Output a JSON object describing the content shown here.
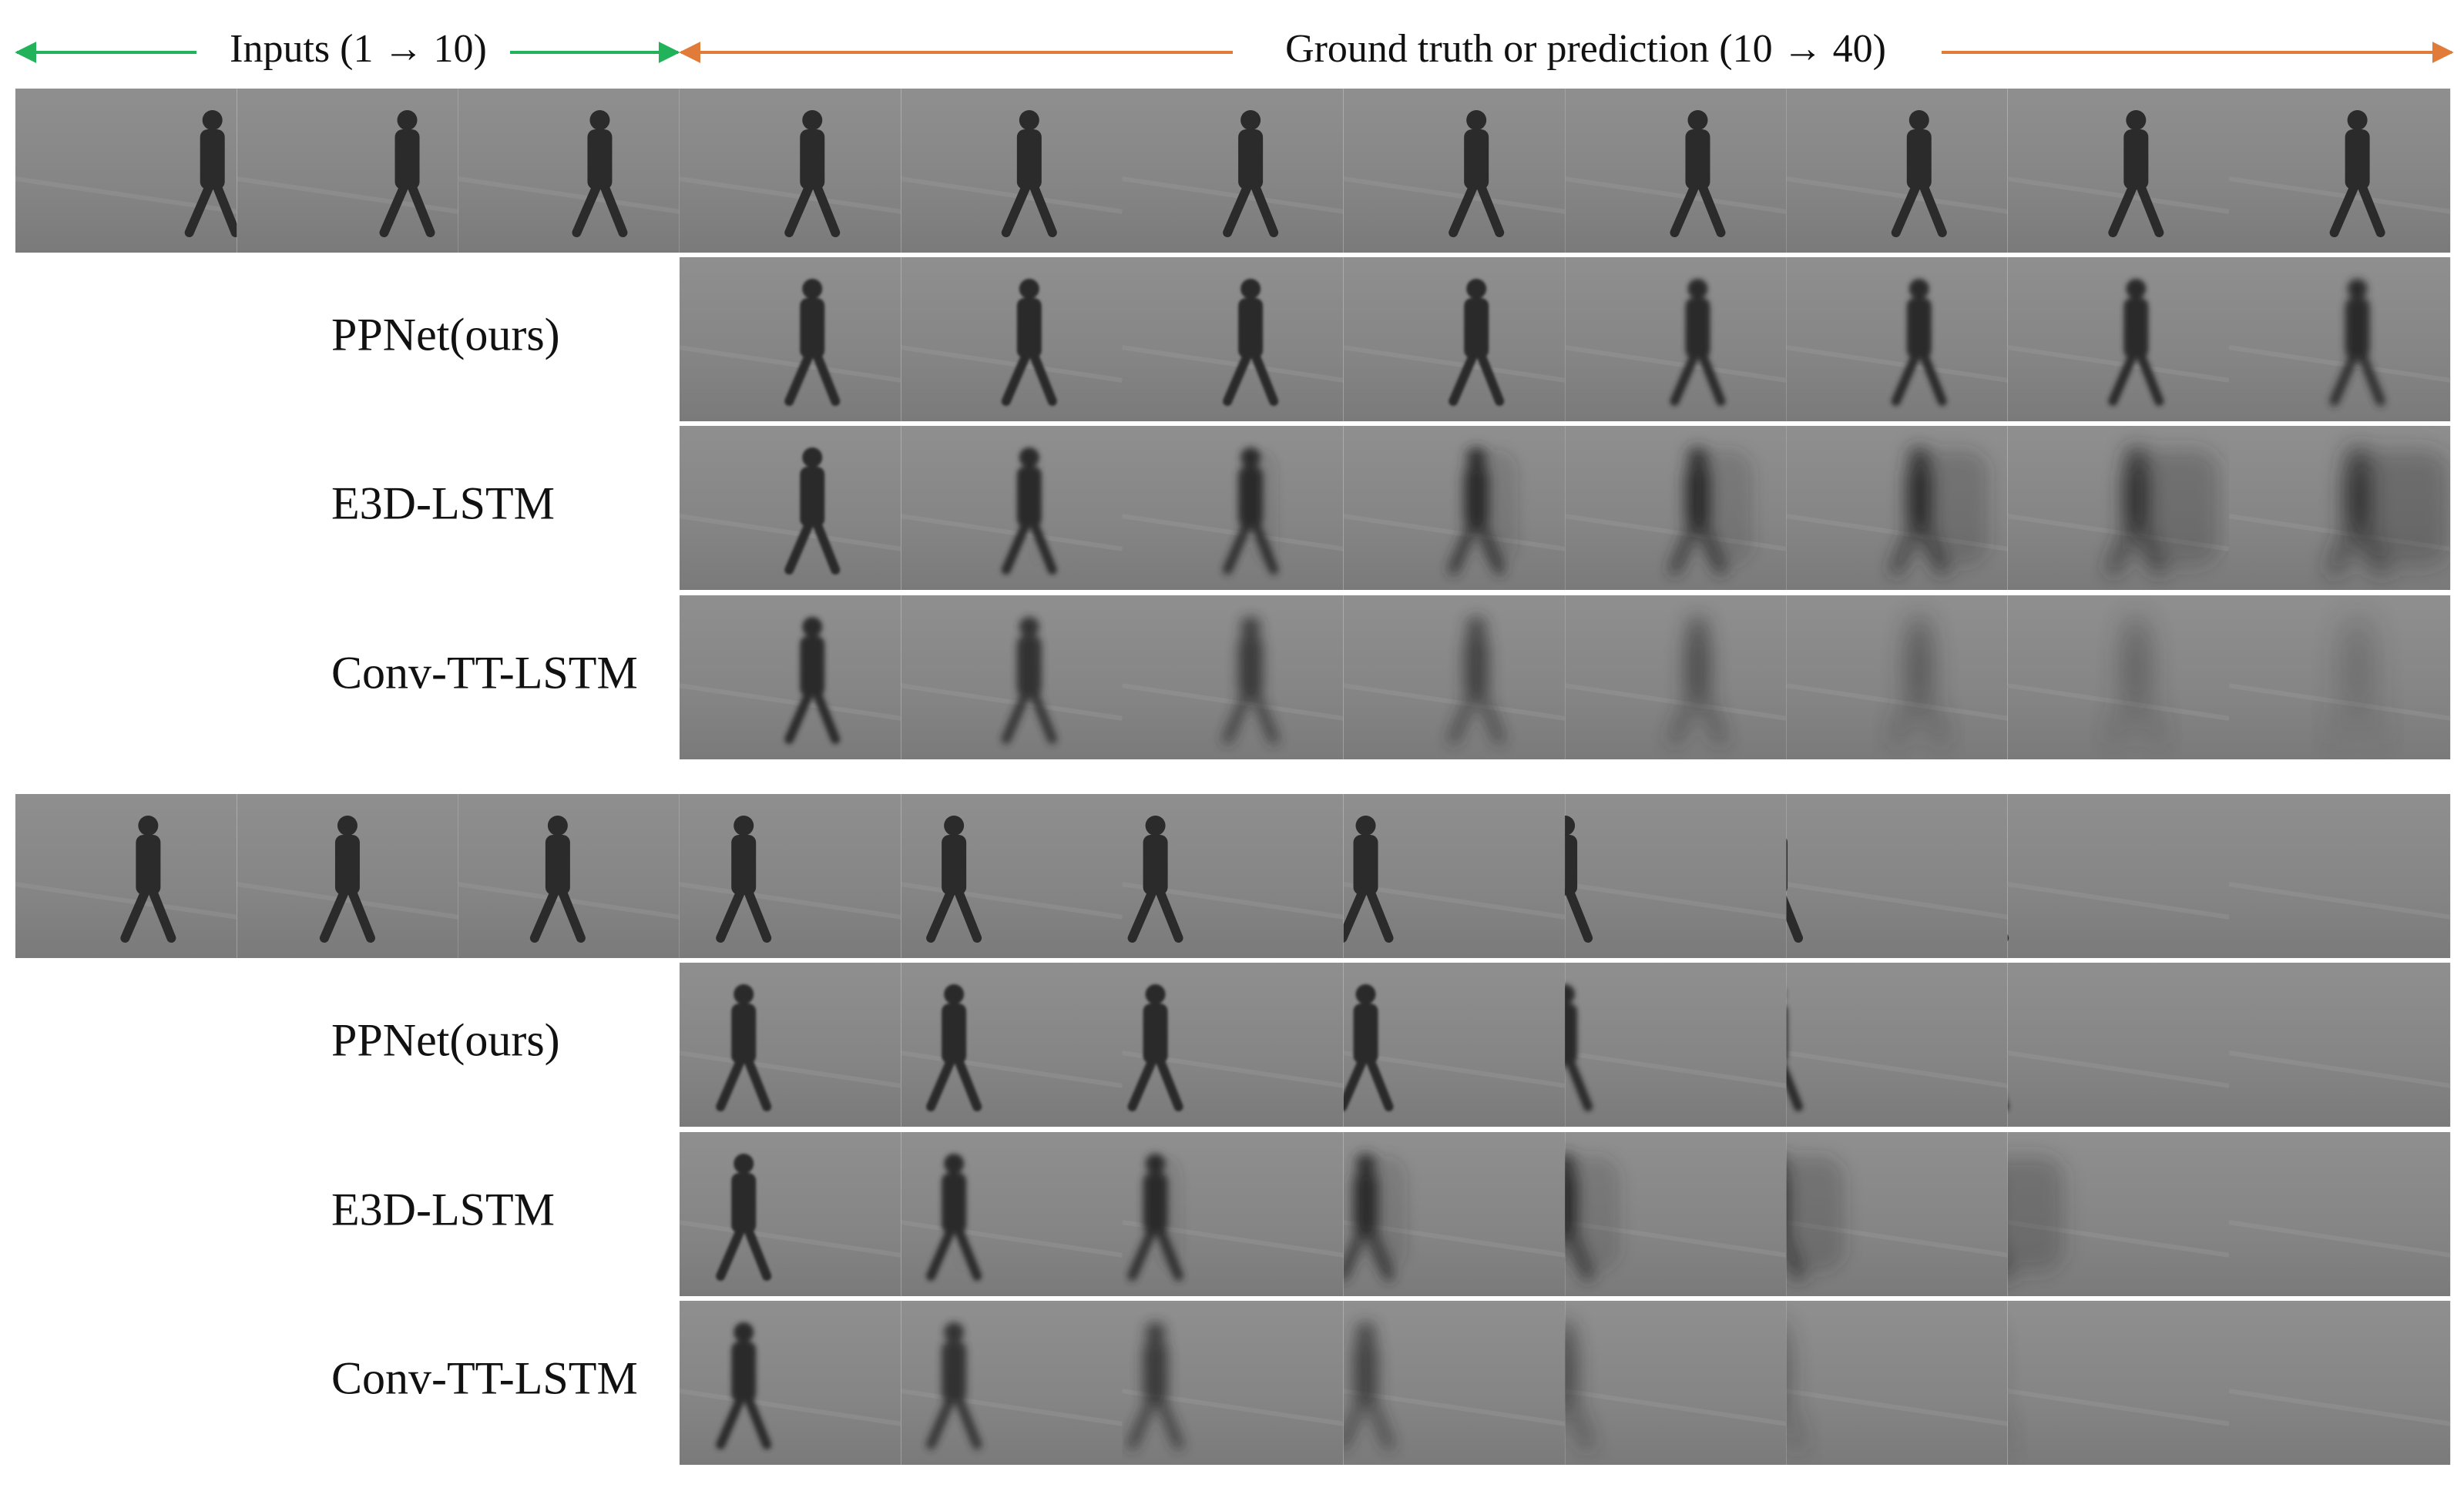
{
  "header": {
    "inputs_label": "Inputs (1 → 10)",
    "output_label": "Ground truth or prediction (10 → 40)"
  },
  "groups": [
    {
      "methods": [
        "PPNet(ours)",
        "E3D-LSTM",
        "Conv-TT-LSTM"
      ]
    },
    {
      "methods": [
        "PPNet(ours)",
        "E3D-LSTM",
        "Conv-TT-LSTM"
      ]
    }
  ]
}
